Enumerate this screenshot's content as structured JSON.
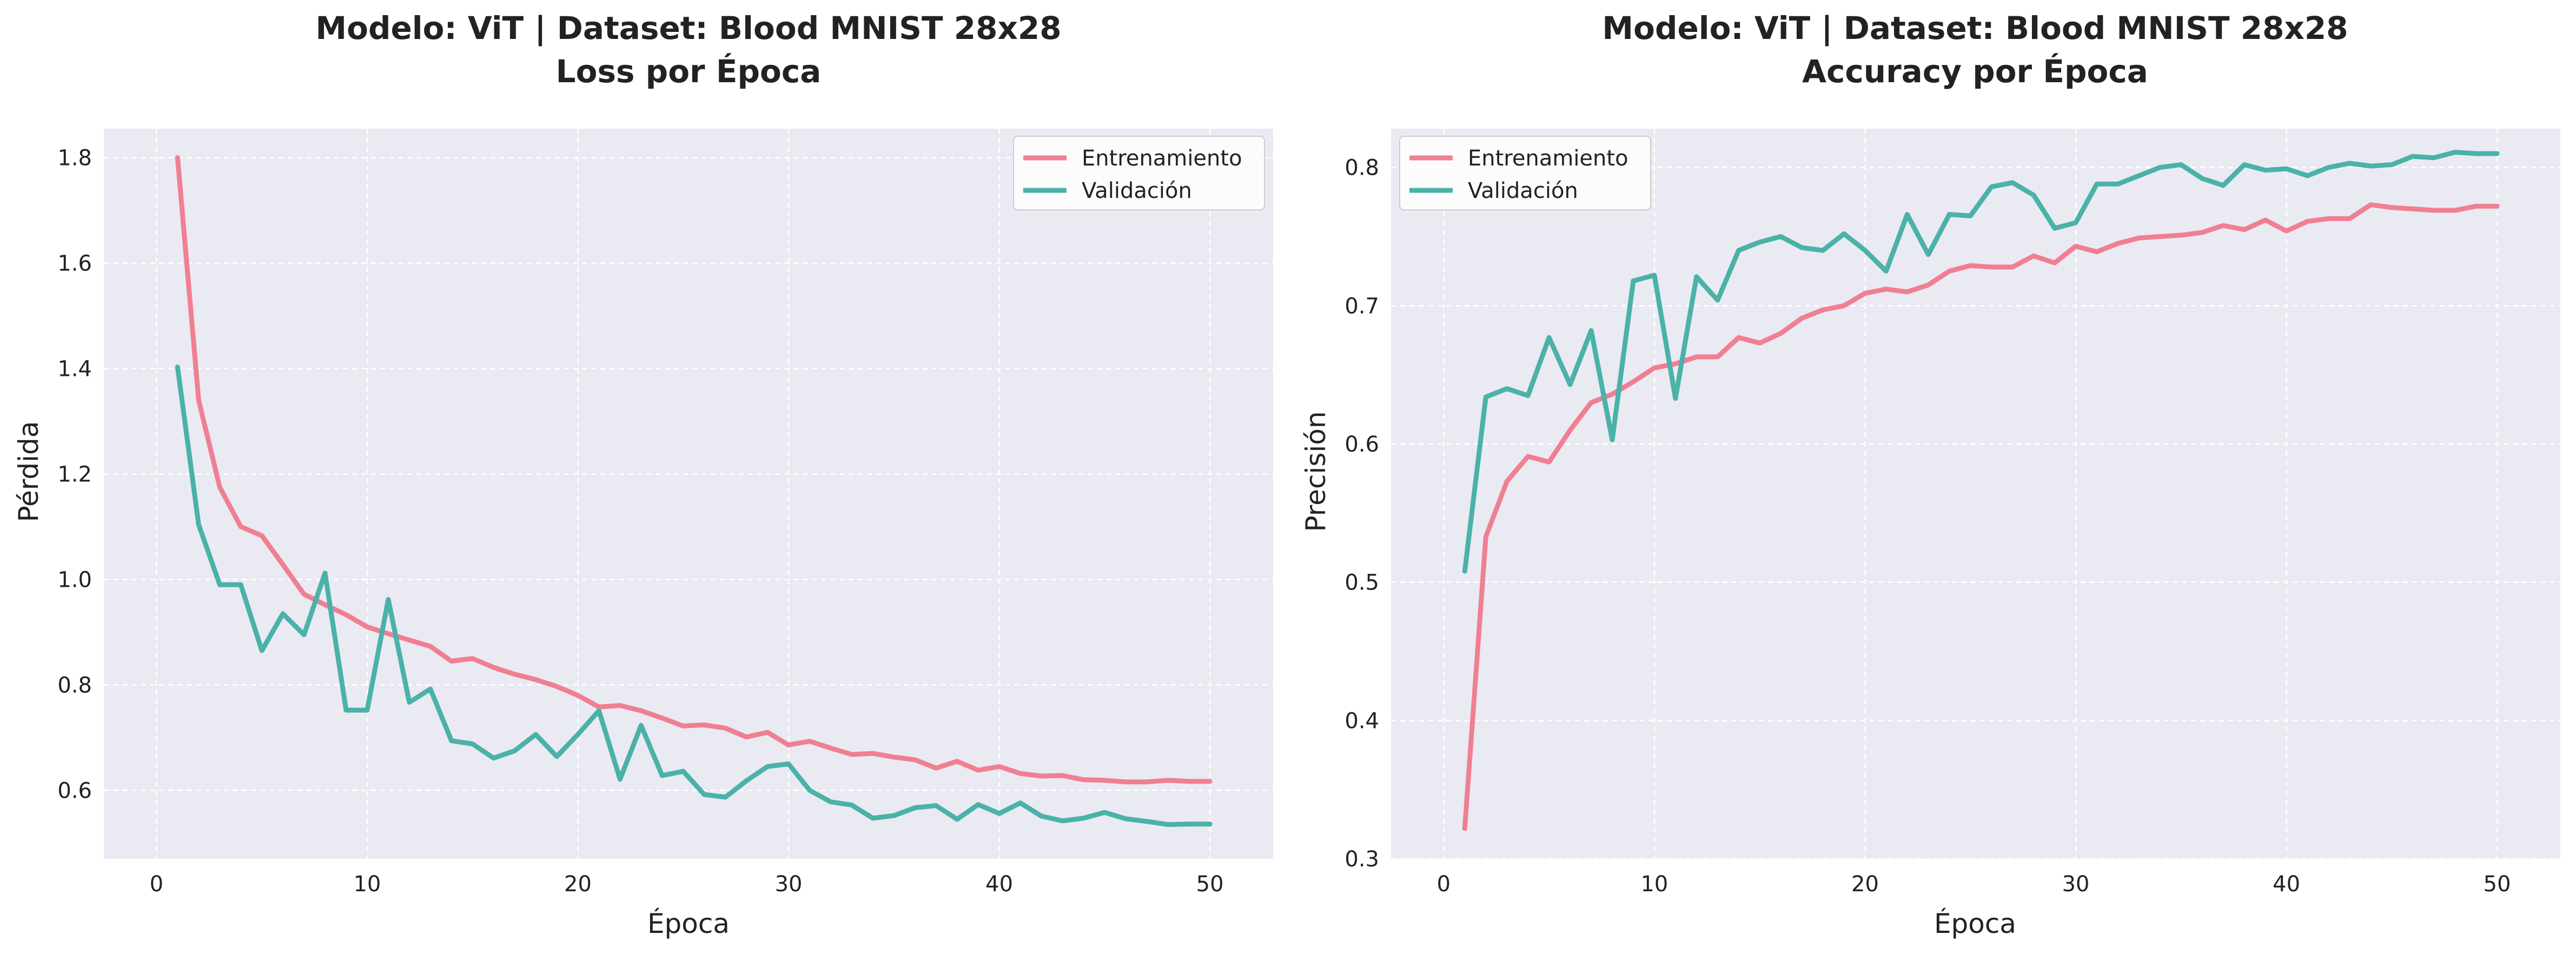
{
  "chart_data": [
    {
      "type": "line",
      "title": "Modelo: ViT | Dataset: Blood MNIST 28x28",
      "subtitle": "Loss por Época",
      "xlabel": "Época",
      "ylabel": "Pérdida",
      "xlim": [
        -2.5,
        53.0
      ],
      "ylim": [
        0.47,
        1.855
      ],
      "xticks": [
        0,
        10,
        20,
        30,
        40,
        50
      ],
      "yticks": [
        0.6,
        0.8,
        1.0,
        1.2,
        1.4,
        1.6,
        1.8
      ],
      "grid": true,
      "legend_position": "top-right",
      "x": [
        1,
        2,
        3,
        4,
        5,
        6,
        7,
        8,
        9,
        10,
        11,
        12,
        13,
        14,
        15,
        16,
        17,
        18,
        19,
        20,
        21,
        22,
        23,
        24,
        25,
        26,
        27,
        28,
        29,
        30,
        31,
        32,
        33,
        34,
        35,
        36,
        37,
        38,
        39,
        40,
        41,
        42,
        43,
        44,
        45,
        46,
        47,
        48,
        49,
        50
      ],
      "series": [
        {
          "name": "Entrenamiento",
          "color": "#f07f92",
          "values": [
            1.8,
            1.34,
            1.175,
            1.1,
            1.083,
            1.028,
            0.972,
            0.952,
            0.933,
            0.91,
            0.897,
            0.885,
            0.873,
            0.845,
            0.85,
            0.833,
            0.82,
            0.81,
            0.797,
            0.78,
            0.758,
            0.761,
            0.751,
            0.737,
            0.722,
            0.724,
            0.718,
            0.701,
            0.71,
            0.686,
            0.693,
            0.68,
            0.668,
            0.67,
            0.663,
            0.658,
            0.642,
            0.655,
            0.638,
            0.645,
            0.632,
            0.627,
            0.628,
            0.62,
            0.619,
            0.616,
            0.616,
            0.619,
            0.617,
            0.617
          ]
        },
        {
          "name": "Validación",
          "color": "#4ab2a8",
          "values": [
            1.403,
            1.104,
            0.99,
            0.99,
            0.865,
            0.935,
            0.895,
            1.012,
            0.752,
            0.752,
            0.962,
            0.767,
            0.792,
            0.694,
            0.688,
            0.661,
            0.675,
            0.706,
            0.664,
            0.706,
            0.751,
            0.621,
            0.723,
            0.628,
            0.636,
            0.592,
            0.587,
            0.618,
            0.645,
            0.65,
            0.6,
            0.578,
            0.572,
            0.547,
            0.552,
            0.567,
            0.571,
            0.545,
            0.573,
            0.556,
            0.576,
            0.551,
            0.542,
            0.547,
            0.558,
            0.546,
            0.541,
            0.535,
            0.536,
            0.536
          ]
        }
      ]
    },
    {
      "type": "line",
      "title": "Modelo: ViT | Dataset: Blood MNIST 28x28",
      "subtitle": "Accuracy por Época",
      "xlabel": "Época",
      "ylabel": "Precisión",
      "xlim": [
        -2.5,
        53.0
      ],
      "ylim": [
        0.3,
        0.828
      ],
      "xticks": [
        0,
        10,
        20,
        30,
        40,
        50
      ],
      "yticks": [
        0.3,
        0.4,
        0.5,
        0.6,
        0.7,
        0.8
      ],
      "grid": true,
      "legend_position": "top-left",
      "x": [
        1,
        2,
        3,
        4,
        5,
        6,
        7,
        8,
        9,
        10,
        11,
        12,
        13,
        14,
        15,
        16,
        17,
        18,
        19,
        20,
        21,
        22,
        23,
        24,
        25,
        26,
        27,
        28,
        29,
        30,
        31,
        32,
        33,
        34,
        35,
        36,
        37,
        38,
        39,
        40,
        41,
        42,
        43,
        44,
        45,
        46,
        47,
        48,
        49,
        50
      ],
      "series": [
        {
          "name": "Entrenamiento",
          "color": "#f07f92",
          "values": [
            0.322,
            0.533,
            0.573,
            0.591,
            0.587,
            0.61,
            0.63,
            0.636,
            0.645,
            0.655,
            0.658,
            0.663,
            0.663,
            0.677,
            0.673,
            0.68,
            0.691,
            0.697,
            0.7,
            0.709,
            0.712,
            0.71,
            0.715,
            0.725,
            0.729,
            0.728,
            0.728,
            0.736,
            0.731,
            0.743,
            0.739,
            0.745,
            0.749,
            0.75,
            0.751,
            0.753,
            0.758,
            0.755,
            0.762,
            0.754,
            0.761,
            0.763,
            0.763,
            0.773,
            0.771,
            0.77,
            0.769,
            0.769,
            0.772,
            0.772
          ]
        },
        {
          "name": "Validación",
          "color": "#4ab2a8",
          "values": [
            0.508,
            0.634,
            0.64,
            0.635,
            0.677,
            0.643,
            0.682,
            0.603,
            0.718,
            0.722,
            0.633,
            0.721,
            0.704,
            0.74,
            0.746,
            0.75,
            0.742,
            0.74,
            0.752,
            0.74,
            0.725,
            0.766,
            0.737,
            0.766,
            0.765,
            0.786,
            0.789,
            0.78,
            0.756,
            0.76,
            0.788,
            0.788,
            0.794,
            0.8,
            0.802,
            0.792,
            0.787,
            0.802,
            0.798,
            0.799,
            0.794,
            0.8,
            0.803,
            0.801,
            0.802,
            0.808,
            0.807,
            0.811,
            0.81,
            0.81
          ]
        }
      ]
    }
  ]
}
